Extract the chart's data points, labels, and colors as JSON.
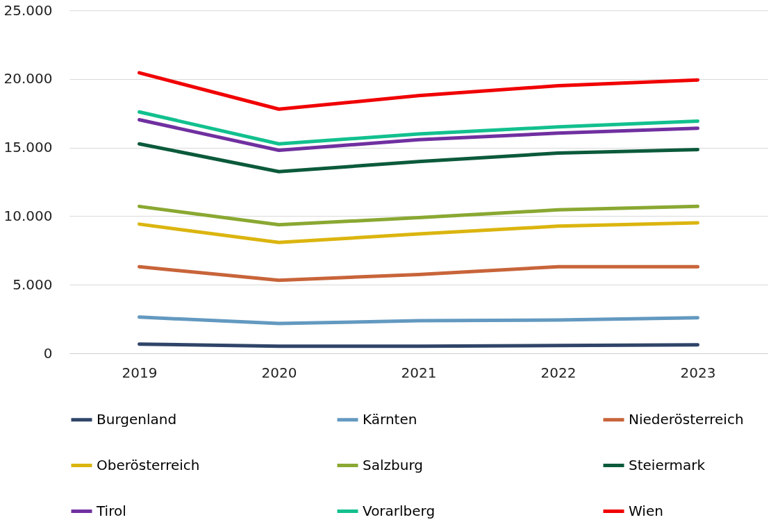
{
  "chart_data": {
    "type": "line",
    "categories": [
      "2019",
      "2020",
      "2021",
      "2022",
      "2023"
    ],
    "series": [
      {
        "name": "Burgenland",
        "color": "#2f4468",
        "values": [
          670,
          520,
          520,
          570,
          620
        ]
      },
      {
        "name": "Kärnten",
        "color": "#6399c0",
        "values": [
          2640,
          2170,
          2380,
          2430,
          2590
        ]
      },
      {
        "name": "Niederösterreich",
        "color": "#c8643a",
        "values": [
          6310,
          5330,
          5750,
          6310,
          6310
        ]
      },
      {
        "name": "Oberösterreich",
        "color": "#dbb50f",
        "values": [
          9420,
          8080,
          8700,
          9270,
          9520
        ]
      },
      {
        "name": "Salzburg",
        "color": "#8aa832",
        "values": [
          10710,
          9370,
          9890,
          10460,
          10710
        ]
      },
      {
        "name": "Steiermark",
        "color": "#0b5a3b",
        "values": [
          15270,
          13250,
          13980,
          14600,
          14850
        ]
      },
      {
        "name": "Tirol",
        "color": "#7030a0",
        "values": [
          17030,
          14800,
          15580,
          16050,
          16410
        ]
      },
      {
        "name": "Vorarlberg",
        "color": "#12c08e",
        "values": [
          17600,
          15270,
          15990,
          16510,
          16930
        ]
      },
      {
        "name": "Wien",
        "color": "#f00000",
        "values": [
          20450,
          17800,
          18790,
          19510,
          19930
        ]
      }
    ],
    "ylim": [
      0,
      25000
    ],
    "yticks": [
      {
        "value": 0,
        "label": "0"
      },
      {
        "value": 5000,
        "label": "5.000"
      },
      {
        "value": 10000,
        "label": "10.000"
      },
      {
        "value": 15000,
        "label": "15.000"
      },
      {
        "value": 20000,
        "label": "20.000"
      },
      {
        "value": 25000,
        "label": "25.000"
      }
    ],
    "grid": "y",
    "legend": "bottom",
    "marker": "none",
    "line_style": "solid"
  }
}
